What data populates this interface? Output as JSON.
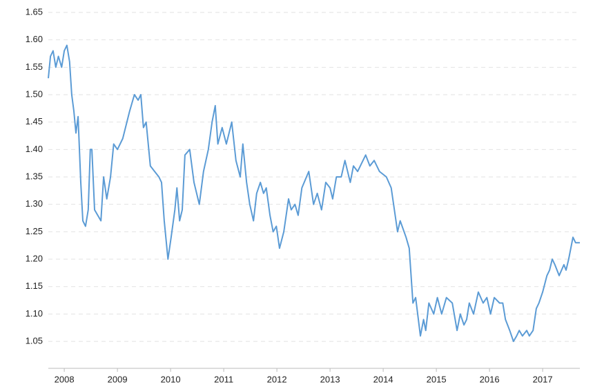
{
  "chart_data": {
    "type": "line",
    "x": [
      2008.2,
      2008.24,
      2008.29,
      2008.34,
      2008.39,
      2008.45,
      2008.5,
      2008.55,
      2008.6,
      2008.64,
      2008.68,
      2008.72,
      2008.76,
      2008.81,
      2008.85,
      2008.9,
      2008.95,
      2008.99,
      2009.02,
      2009.07,
      2009.19,
      2009.24,
      2009.3,
      2009.37,
      2009.43,
      2009.5,
      2009.6,
      2009.73,
      2009.82,
      2009.89,
      2009.94,
      2009.99,
      2010.04,
      2010.12,
      2010.2,
      2010.28,
      2010.33,
      2010.38,
      2010.45,
      2010.51,
      2010.58,
      2010.62,
      2010.67,
      2010.72,
      2010.77,
      2010.86,
      2010.94,
      2011.04,
      2011.12,
      2011.21,
      2011.28,
      2011.34,
      2011.39,
      2011.47,
      2011.55,
      2011.65,
      2011.73,
      2011.81,
      2011.86,
      2011.93,
      2011.99,
      2012.06,
      2012.12,
      2012.19,
      2012.25,
      2012.3,
      2012.37,
      2012.43,
      2012.49,
      2012.55,
      2012.63,
      2012.72,
      2012.77,
      2012.84,
      2012.9,
      2012.97,
      2013.1,
      2013.19,
      2013.26,
      2013.34,
      2013.42,
      2013.5,
      2013.55,
      2013.62,
      2013.71,
      2013.78,
      2013.88,
      2013.94,
      2014.02,
      2014.17,
      2014.25,
      2014.33,
      2014.43,
      2014.56,
      2014.65,
      2014.71,
      2014.77,
      2014.82,
      2014.93,
      2014.99,
      2015.06,
      2015.11,
      2015.2,
      2015.26,
      2015.3,
      2015.36,
      2015.45,
      2015.52,
      2015.6,
      2015.69,
      2015.8,
      2015.89,
      2015.95,
      2016.02,
      2016.07,
      2016.12,
      2016.2,
      2016.29,
      2016.38,
      2016.45,
      2016.52,
      2016.59,
      2016.69,
      2016.75,
      2016.8,
      2016.88,
      2016.95,
      2017.01,
      2017.06,
      2017.12,
      2017.2,
      2017.25,
      2017.32,
      2017.38,
      2017.43,
      2017.5,
      2017.58,
      2017.63,
      2017.68,
      2017.73,
      2017.81,
      2017.9,
      2017.94,
      2017.99,
      2018.07,
      2018.12,
      2018.2
    ],
    "series": [
      {
        "color": "#5b9bd5",
        "values": [
          1.53,
          1.57,
          1.58,
          1.55,
          1.57,
          1.55,
          1.58,
          1.59,
          1.56,
          1.5,
          1.47,
          1.43,
          1.46,
          1.34,
          1.27,
          1.26,
          1.29,
          1.4,
          1.4,
          1.29,
          1.27,
          1.35,
          1.31,
          1.35,
          1.41,
          1.4,
          1.42,
          1.47,
          1.5,
          1.49,
          1.5,
          1.44,
          1.45,
          1.37,
          1.36,
          1.35,
          1.34,
          1.27,
          1.2,
          1.24,
          1.29,
          1.33,
          1.27,
          1.29,
          1.39,
          1.4,
          1.34,
          1.3,
          1.36,
          1.4,
          1.45,
          1.48,
          1.41,
          1.44,
          1.41,
          1.45,
          1.38,
          1.35,
          1.41,
          1.34,
          1.3,
          1.27,
          1.32,
          1.34,
          1.32,
          1.33,
          1.28,
          1.25,
          1.26,
          1.22,
          1.25,
          1.31,
          1.29,
          1.3,
          1.28,
          1.33,
          1.36,
          1.3,
          1.32,
          1.29,
          1.34,
          1.33,
          1.31,
          1.35,
          1.35,
          1.38,
          1.34,
          1.37,
          1.36,
          1.39,
          1.37,
          1.38,
          1.36,
          1.35,
          1.33,
          1.29,
          1.25,
          1.27,
          1.24,
          1.22,
          1.12,
          1.13,
          1.06,
          1.09,
          1.07,
          1.12,
          1.1,
          1.13,
          1.1,
          1.13,
          1.12,
          1.07,
          1.1,
          1.08,
          1.09,
          1.12,
          1.1,
          1.14,
          1.12,
          1.13,
          1.1,
          1.13,
          1.12,
          1.12,
          1.09,
          1.07,
          1.05,
          1.06,
          1.07,
          1.06,
          1.07,
          1.06,
          1.07,
          1.11,
          1.12,
          1.14,
          1.17,
          1.18,
          1.2,
          1.19,
          1.17,
          1.19,
          1.18,
          1.2,
          1.24,
          1.23,
          1.23
        ]
      }
    ],
    "xlim": [
      2008.2,
      2018.2
    ],
    "xticks": [
      {
        "value": 2008.5,
        "label": "2008"
      },
      {
        "value": 2009.5,
        "label": "2009"
      },
      {
        "value": 2010.5,
        "label": "2010"
      },
      {
        "value": 2011.5,
        "label": "2011"
      },
      {
        "value": 2012.5,
        "label": "2012"
      },
      {
        "value": 2013.5,
        "label": "2013"
      },
      {
        "value": 2014.5,
        "label": "2014"
      },
      {
        "value": 2015.5,
        "label": "2015"
      },
      {
        "value": 2016.5,
        "label": "2016"
      },
      {
        "value": 2017.5,
        "label": "2017"
      }
    ],
    "ylim": [
      1.0,
      1.65
    ],
    "yticks": [
      1.05,
      {
        "value": 1.1,
        "label": "1.10"
      },
      1.15,
      {
        "value": 1.2,
        "label": "1.20"
      },
      1.25,
      {
        "value": 1.3,
        "label": "1.30"
      },
      1.35,
      {
        "value": 1.4,
        "label": "1.40"
      },
      1.45,
      {
        "value": 1.5,
        "label": "1.50"
      },
      1.55,
      {
        "value": 1.6,
        "label": "1.60"
      },
      1.65
    ],
    "grid": true
  }
}
